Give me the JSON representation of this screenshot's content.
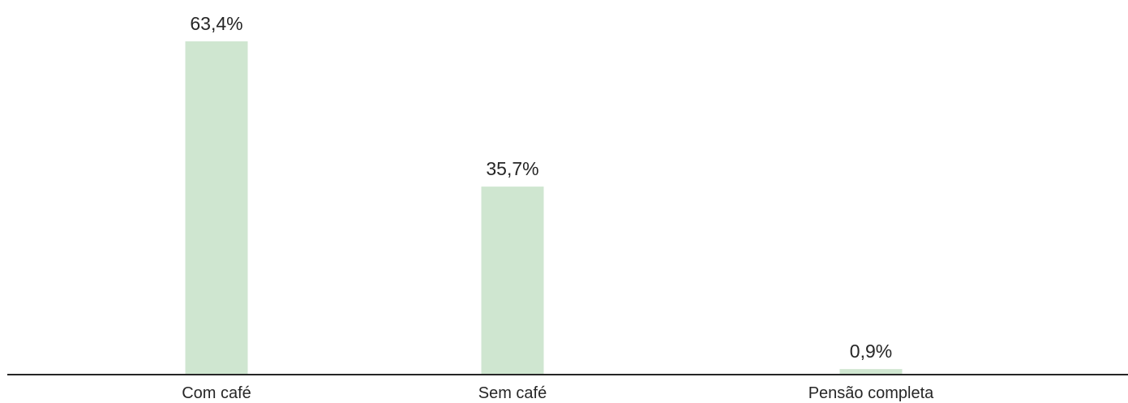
{
  "chart_data": {
    "type": "bar",
    "categories": [
      "Com café",
      "Sem café",
      "Pensão completa"
    ],
    "values": [
      63.4,
      35.7,
      0.9
    ],
    "value_labels": [
      "63,4%",
      "35,7%",
      "0,9%"
    ],
    "title": "",
    "xlabel": "",
    "ylabel": "",
    "ylim": [
      0,
      63.4
    ],
    "grid": false,
    "legend": "none",
    "colors": {
      "bar": "#cfe6d0",
      "axis": "#262626",
      "text": "#262626"
    }
  }
}
